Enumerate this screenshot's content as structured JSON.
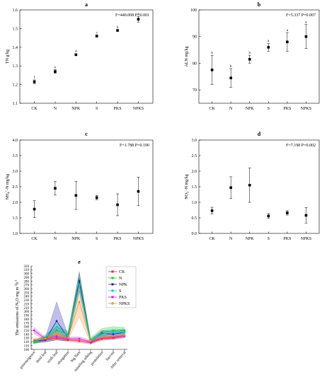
{
  "chart_data": [
    {
      "id": "a",
      "type": "scatter",
      "title": "a",
      "stat": "F=440.008 P<0.001",
      "ylabel": "TN g/kg",
      "categories": [
        "CK",
        "N",
        "NPK",
        "S",
        "PKS",
        "NPKS"
      ],
      "values": [
        1.215,
        1.27,
        1.36,
        1.46,
        1.49,
        1.55
      ],
      "errors": [
        0.01,
        0.01,
        0.005,
        0.006,
        0.004,
        0.015
      ],
      "letters": [
        "f",
        "e",
        "d",
        "c",
        "b",
        "a"
      ],
      "ylim": [
        1.1,
        1.6
      ],
      "yticks": [
        "1.1",
        "1.2",
        "1.3",
        "1.4",
        "1.5",
        "1.6"
      ]
    },
    {
      "id": "b",
      "type": "scatter",
      "title": "b",
      "stat": "F=5.337 P=0.007",
      "ylabel": "ALN mg/kg",
      "categories": [
        "CK",
        "N",
        "NPK",
        "S",
        "PKS",
        "NPKS"
      ],
      "values": [
        77.5,
        74.5,
        81.5,
        86.0,
        88.0,
        90.0
      ],
      "errors": [
        5.5,
        3.5,
        1.5,
        1.5,
        3.5,
        4.5
      ],
      "letters": [
        "b",
        "b",
        "b",
        "a",
        "a",
        "a"
      ],
      "ylim": [
        65,
        100
      ],
      "yticks": [
        "70",
        "80",
        "90",
        "100"
      ]
    },
    {
      "id": "c",
      "type": "scatter",
      "title": "c",
      "stat": "F=1.788 P=0.190",
      "ylabel": "NH4+-N mg/kg",
      "categories": [
        "CK",
        "N",
        "NPK",
        "S",
        "PKS",
        "NPKS"
      ],
      "values": [
        1.78,
        2.45,
        2.22,
        2.15,
        1.92,
        2.35
      ],
      "errors": [
        0.27,
        0.22,
        0.45,
        0.07,
        0.35,
        0.46
      ],
      "letters": [
        "",
        "",
        "",
        "",
        "",
        ""
      ],
      "ylim": [
        1.0,
        4.0
      ],
      "yticks": [
        "1.0",
        "1.5",
        "2.0",
        "2.5",
        "3.0",
        "3.5",
        "4.0"
      ]
    },
    {
      "id": "d",
      "type": "scatter",
      "title": "d",
      "stat": "F=7.198 P=0.002",
      "ylabel": "NO3--N mg/kg",
      "categories": [
        "CK",
        "N",
        "NPK",
        "S",
        "PKS",
        "NPKS"
      ],
      "values": [
        0.73,
        1.47,
        1.55,
        0.56,
        0.66,
        0.58
      ],
      "errors": [
        0.11,
        0.35,
        0.55,
        0.08,
        0.07,
        0.25
      ],
      "letters": [
        "",
        "",
        "",
        "",
        "",
        ""
      ],
      "ylim": [
        0.0,
        3.0
      ],
      "yticks": [
        "0.0",
        "0.5",
        "1.0",
        "1.5",
        "2.0",
        "2.5",
        "3.0"
      ]
    },
    {
      "id": "e",
      "type": "line",
      "title": "e",
      "ylabel": "The emissions of N2O mg m-2h-1",
      "categories": [
        "preemergence",
        "third leaf",
        "sixth leaf",
        "elongation",
        "big flare",
        "tasseling silking",
        "postulation",
        "harvest",
        "After removal"
      ],
      "ylim": [
        100,
        320
      ],
      "yticks": [
        "100",
        "110",
        "120",
        "130",
        "140",
        "150",
        "160",
        "170",
        "180",
        "190",
        "200",
        "210",
        "220",
        "230",
        "240",
        "250",
        "260",
        "270",
        "280",
        "290",
        "300",
        "310",
        "320"
      ],
      "series": [
        {
          "name": "CK",
          "color": "#e8233a",
          "values": [
            120,
            125,
            130,
            125,
            122,
            118,
            128,
            130,
            135
          ],
          "spread": [
            4,
            4,
            5,
            4,
            4,
            4,
            4,
            4,
            4
          ]
        },
        {
          "name": "N",
          "color": "#1fbf2b",
          "values": [
            118,
            130,
            150,
            140,
            285,
            125,
            145,
            150,
            150
          ],
          "spread": [
            4,
            8,
            10,
            8,
            15,
            6,
            10,
            10,
            8
          ]
        },
        {
          "name": "NPK",
          "color": "#1a1aa8",
          "values": [
            122,
            125,
            175,
            130,
            280,
            120,
            142,
            140,
            145
          ],
          "spread": [
            4,
            6,
            50,
            8,
            25,
            6,
            8,
            8,
            8
          ]
        },
        {
          "name": "S",
          "color": "#17c7c7",
          "values": [
            120,
            130,
            160,
            135,
            270,
            122,
            140,
            145,
            145
          ],
          "spread": [
            4,
            6,
            12,
            8,
            20,
            6,
            8,
            8,
            8
          ]
        },
        {
          "name": "PKS",
          "color": "#d01fd0",
          "values": [
            150,
            128,
            135,
            128,
            128,
            120,
            130,
            132,
            135
          ],
          "spread": [
            8,
            4,
            5,
            4,
            5,
            4,
            4,
            4,
            4
          ]
        },
        {
          "name": "NPKS",
          "color": "#e8902a",
          "values": [
            125,
            128,
            140,
            130,
            225,
            122,
            132,
            135,
            138
          ],
          "spread": [
            4,
            5,
            8,
            6,
            40,
            5,
            6,
            6,
            6
          ]
        }
      ]
    }
  ]
}
